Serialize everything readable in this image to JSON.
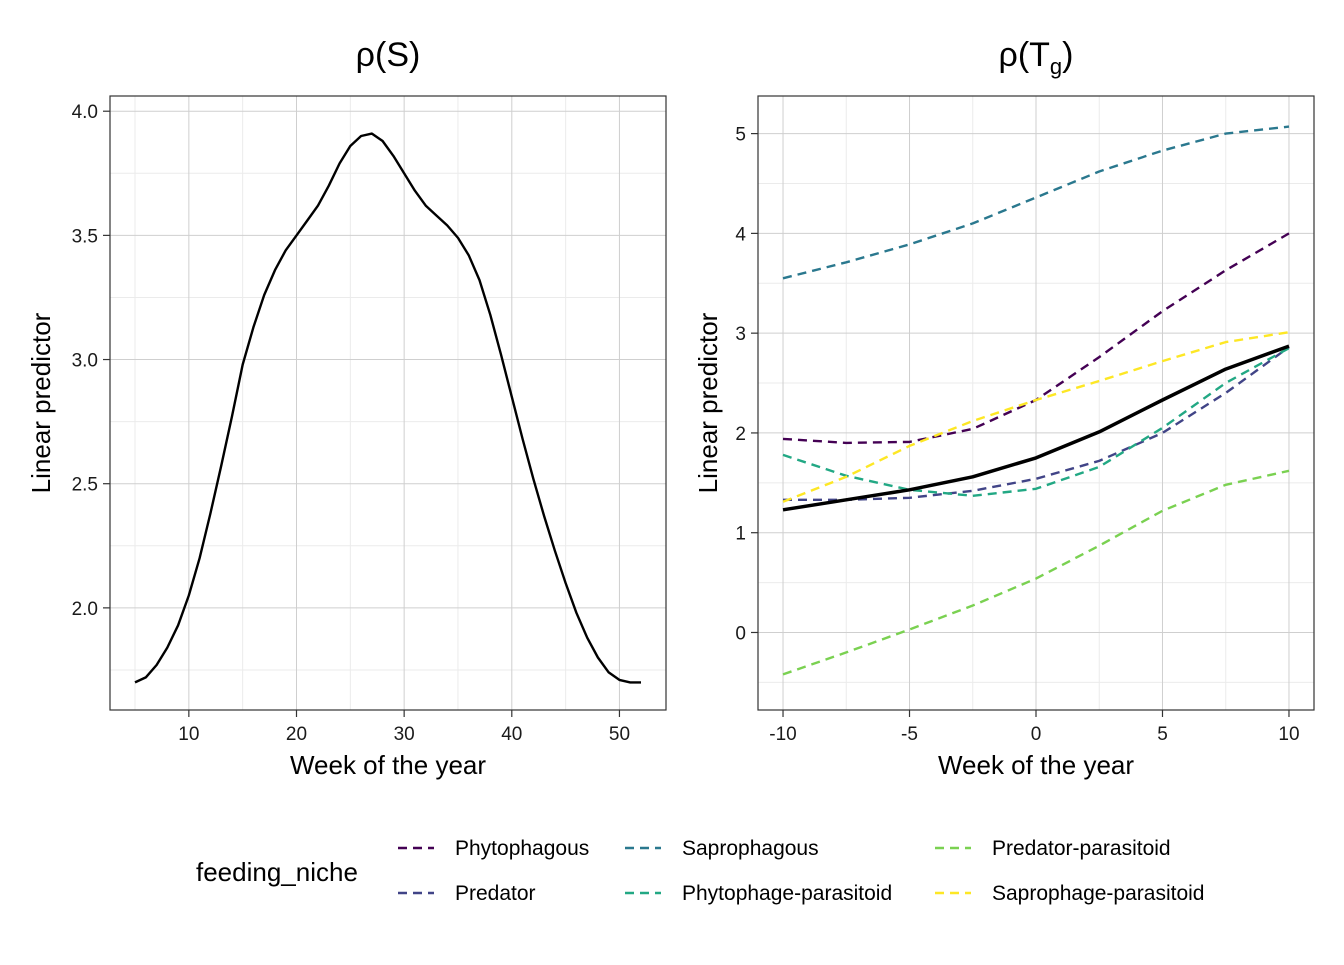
{
  "chart_data": [
    {
      "type": "line",
      "title": "ρ(S)",
      "xlabel": "Week of the year",
      "ylabel": "Linear predictor",
      "xlim": [
        5,
        52
      ],
      "ylim": [
        1.7,
        3.95
      ],
      "xticks": [
        10,
        20,
        30,
        40,
        50
      ],
      "xtick_labels": [
        "10",
        "20",
        "30",
        "40",
        "50"
      ],
      "yticks": [
        2.0,
        2.5,
        3.0,
        3.5,
        4.0
      ],
      "ytick_labels": [
        "2.0",
        "2.5",
        "3.0",
        "3.5",
        "4.0"
      ],
      "grid": true,
      "series": [
        {
          "color": "#000000",
          "dash": "solid",
          "x": [
            5,
            6,
            7,
            8,
            9,
            10,
            11,
            12,
            13,
            14,
            15,
            16,
            17,
            18,
            19,
            20,
            21,
            22,
            23,
            24,
            25,
            26,
            27,
            28,
            29,
            30,
            31,
            32,
            33,
            34,
            35,
            36,
            37,
            38,
            39,
            40,
            41,
            42,
            43,
            44,
            45,
            46,
            47,
            48,
            49,
            50,
            51,
            52
          ],
          "y": [
            1.7,
            1.72,
            1.77,
            1.84,
            1.93,
            2.05,
            2.2,
            2.38,
            2.57,
            2.77,
            2.98,
            3.13,
            3.26,
            3.36,
            3.44,
            3.5,
            3.56,
            3.62,
            3.7,
            3.79,
            3.86,
            3.9,
            3.91,
            3.88,
            3.82,
            3.75,
            3.68,
            3.62,
            3.58,
            3.54,
            3.49,
            3.42,
            3.32,
            3.18,
            3.02,
            2.85,
            2.68,
            2.52,
            2.37,
            2.23,
            2.1,
            1.98,
            1.88,
            1.8,
            1.74,
            1.71,
            1.7,
            1.7
          ]
        }
      ]
    },
    {
      "type": "line",
      "title": "ρ(T",
      "title_sub": "g",
      "title_close": ")",
      "xlabel": "Week of the year",
      "ylabel": "Linear predictor",
      "xlim": [
        -10,
        10
      ],
      "ylim": [
        -0.5,
        5.1
      ],
      "xticks": [
        -10,
        -5,
        0,
        5,
        10
      ],
      "xtick_labels": [
        "-10",
        "-5",
        "0",
        "5",
        "10"
      ],
      "yticks": [
        0,
        1,
        2,
        3,
        4,
        5
      ],
      "ytick_labels": [
        "0",
        "1",
        "2",
        "3",
        "4",
        "5"
      ],
      "grid": true,
      "x": [
        -10,
        -7.5,
        -5,
        -2.5,
        0,
        2.5,
        5,
        7.5,
        10
      ],
      "series": [
        {
          "name": "Phytophagous",
          "color": "#440154",
          "dash": "dashed",
          "y": [
            1.94,
            1.9,
            1.91,
            2.04,
            2.33,
            2.76,
            3.22,
            3.63,
            4.0
          ]
        },
        {
          "name": "Predator",
          "color": "#414487",
          "dash": "dashed",
          "y": [
            1.33,
            1.33,
            1.35,
            1.42,
            1.54,
            1.72,
            2.0,
            2.4,
            2.86
          ]
        },
        {
          "name": "Saprophagous",
          "color": "#2A788E",
          "dash": "dashed",
          "y": [
            3.55,
            3.71,
            3.89,
            4.1,
            4.36,
            4.62,
            4.83,
            5.0,
            5.07
          ]
        },
        {
          "name": "Phytophage-parasitoid",
          "color": "#22A884",
          "dash": "dashed",
          "y": [
            1.78,
            1.57,
            1.43,
            1.37,
            1.44,
            1.66,
            2.05,
            2.5,
            2.85
          ]
        },
        {
          "name": "Predator-parasitoid",
          "color": "#7AD151",
          "dash": "dashed",
          "y": [
            -0.42,
            -0.2,
            0.03,
            0.27,
            0.54,
            0.87,
            1.22,
            1.48,
            1.62
          ]
        },
        {
          "name": "Saprophage-parasitoid",
          "color": "#FDE725",
          "dash": "dashed",
          "y": [
            1.31,
            1.56,
            1.87,
            2.12,
            2.33,
            2.52,
            2.72,
            2.91,
            3.01
          ]
        },
        {
          "color": "#000000",
          "dash": "solid",
          "bold": true,
          "y": [
            1.23,
            1.33,
            1.43,
            1.56,
            1.75,
            2.01,
            2.33,
            2.64,
            2.87
          ]
        }
      ]
    }
  ],
  "legend": {
    "title": "feeding_niche",
    "items": [
      {
        "label": "Phytophagous",
        "color": "#440154"
      },
      {
        "label": "Predator",
        "color": "#414487"
      },
      {
        "label": "Saprophagous",
        "color": "#2A788E"
      },
      {
        "label": "Phytophage-parasitoid",
        "color": "#22A884"
      },
      {
        "label": "Predator-parasitoid",
        "color": "#7AD151"
      },
      {
        "label": "Saprophage-parasitoid",
        "color": "#FDE725"
      }
    ]
  }
}
